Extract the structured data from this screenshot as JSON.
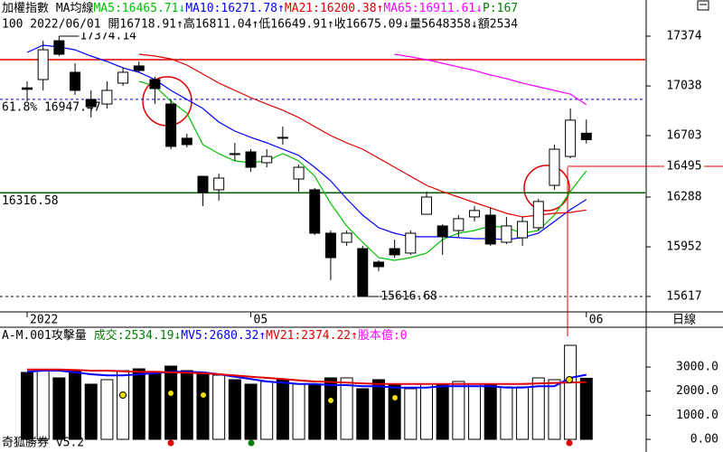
{
  "chart_data": [
    {
      "type": "candlestick",
      "title": "加權指數 MA均線",
      "info": "100 2022/06/01 開16718.91↑高16811.04↑低16649.91↑收16675.09↓量5648358↓額2534",
      "extra": {
        "text": "P:167",
        "color": "#008000"
      },
      "period": "日線",
      "categories": [
        "2022",
        null,
        null,
        null,
        null,
        null,
        null,
        null,
        null,
        null,
        null,
        null,
        null,
        null,
        "05",
        null,
        null,
        null,
        null,
        null,
        null,
        null,
        null,
        null,
        null,
        null,
        null,
        null,
        null,
        null,
        null,
        null,
        null,
        null,
        null,
        "06"
      ],
      "open": [
        17025,
        17081,
        17343,
        17130,
        16947,
        16916,
        17057,
        17173,
        17081,
        16916,
        16685,
        16428,
        16337,
        16581,
        16593,
        16520,
        16691,
        16410,
        16337,
        16044,
        15983,
        15940,
        15849,
        15940,
        15910,
        16172,
        16093,
        16062,
        16154,
        16166,
        15983,
        16013,
        16081,
        16367,
        16562,
        16718.91
      ],
      "high": [
        17069,
        17343,
        17374.14,
        17191,
        17008,
        17069,
        17160,
        17203,
        17099,
        16947,
        16715,
        16428,
        16446,
        16654,
        16611,
        16611,
        16764,
        16507,
        16349,
        16062,
        16062,
        15959,
        15861,
        16001,
        16062,
        16325,
        16105,
        16166,
        16227,
        16215,
        16154,
        16154,
        16276,
        16642,
        16886,
        16811.04
      ],
      "low": [
        16935,
        17008,
        17240,
        16977,
        16825,
        16886,
        17038,
        17130,
        16916,
        16611,
        16624,
        16227,
        16264,
        16532,
        16459,
        16489,
        16642,
        16324,
        16032,
        15727,
        15959,
        15616.68,
        15788,
        15879,
        15898,
        16172,
        15898,
        16020,
        16123,
        15959,
        15971,
        15959,
        16062,
        16337,
        16550,
        16649.91
      ],
      "close": [
        17015,
        17282,
        17252,
        17008,
        16898,
        17008,
        17130,
        17142,
        17020,
        16630,
        16642,
        16318,
        16416,
        16575,
        16489,
        16562,
        16685,
        16489,
        16044,
        15879,
        16044,
        15617,
        15818,
        15898,
        16044,
        16288,
        16020,
        16142,
        16197,
        15971,
        16093,
        16123,
        16258,
        16611,
        16807,
        16675.09
      ],
      "up_color": "#ffffff",
      "down_color": "#000000",
      "series": [
        {
          "name": "MA5:16465.71↓",
          "color": "#00c000",
          "values": [
            null,
            null,
            null,
            null,
            null,
            null,
            null,
            17069,
            17038,
            16935,
            16855,
            16642,
            16581,
            16532,
            16520,
            16532,
            16581,
            16532,
            16428,
            16245,
            16093,
            15983,
            15879,
            15861,
            15879,
            15910,
            16001,
            16044,
            16062,
            16093,
            16081,
            16044,
            16062,
            16166,
            16325,
            16465.71
          ]
        },
        {
          "name": "MA10:16271.78↑",
          "color": "#0000ff",
          "values": [
            17264,
            17313,
            17301,
            17282,
            17240,
            17203,
            17160,
            17130,
            17081,
            17008,
            16947,
            16886,
            16794,
            16733,
            16691,
            16654,
            16611,
            16569,
            16489,
            16398,
            16276,
            16166,
            16081,
            16044,
            16020,
            16020,
            16020,
            16014,
            16007,
            16007,
            16001,
            16014,
            16044,
            16123,
            16203,
            16271.78
          ]
        },
        {
          "name": "MA21:16200.38↑",
          "color": "#e00000",
          "values": [
            null,
            null,
            null,
            null,
            null,
            null,
            null,
            17252,
            17240,
            17221,
            17179,
            17118,
            17057,
            17008,
            16959,
            16916,
            16874,
            16825,
            16764,
            16703,
            16654,
            16611,
            16550,
            16489,
            16428,
            16367,
            16325,
            16288,
            16251,
            16215,
            16178,
            16154,
            16166,
            16178,
            16184,
            16200.38
          ]
        },
        {
          "name": "MA65:16911.61↓",
          "color": "#ff00ff",
          "values": [
            null,
            null,
            null,
            null,
            null,
            null,
            null,
            null,
            null,
            null,
            null,
            null,
            null,
            null,
            null,
            null,
            null,
            null,
            null,
            null,
            null,
            null,
            null,
            17252,
            17234,
            17215,
            17191,
            17166,
            17142,
            17112,
            17087,
            17057,
            17032,
            17008,
            16983,
            16911.61
          ]
        }
      ],
      "ylim": [
        15513,
        17618
      ],
      "yticks": [
        17374,
        17038,
        16703,
        16288,
        15952,
        15617
      ],
      "levels": [
        {
          "value": 17215,
          "color": "#e00000",
          "dashed": false
        },
        {
          "value": 16947.47,
          "label": "61.8% 16947.47",
          "color": "#0000c0",
          "dashed": true
        },
        {
          "value": 16316.58,
          "color": "#006000",
          "dashed": false
        },
        {
          "value": 15616.68,
          "color": "#000000",
          "dashed": true
        }
      ],
      "crosshair": 16495
    },
    {
      "type": "bar",
      "title": "A-M.001攻擊量",
      "name": "成交:2534.19↓",
      "legend_color": "#008000",
      "values": [
        2775,
        2850,
        2550,
        2850,
        2288,
        2475,
        2850,
        2925,
        2775,
        3038,
        2850,
        2775,
        2663,
        2475,
        2288,
        2400,
        2475,
        2288,
        2288,
        2550,
        2550,
        2100,
        2475,
        2288,
        2100,
        2288,
        2288,
        2400,
        2288,
        2288,
        2175,
        2175,
        2550,
        2475,
        3900,
        2534.19
      ],
      "series": [
        {
          "name": "MV5:2680.32↑",
          "color": "#0000ff",
          "values": [
            2800,
            2850,
            2850,
            2780,
            2700,
            2650,
            2650,
            2700,
            2750,
            2800,
            2800,
            2780,
            2700,
            2600,
            2500,
            2400,
            2350,
            2300,
            2300,
            2250,
            2250,
            2200,
            2200,
            2150,
            2150,
            2150,
            2200,
            2200,
            2200,
            2200,
            2150,
            2150,
            2200,
            2200,
            2550,
            2680.32
          ]
        },
        {
          "name": "MV21:2374.22↑",
          "color": "#e00000",
          "values": [
            2900,
            2900,
            2900,
            2880,
            2850,
            2850,
            2820,
            2800,
            2800,
            2780,
            2760,
            2740,
            2700,
            2650,
            2600,
            2550,
            2500,
            2450,
            2400,
            2380,
            2350,
            2320,
            2300,
            2300,
            2300,
            2300,
            2300,
            2300,
            2300,
            2300,
            2300,
            2300,
            2320,
            2340,
            2360,
            2374.22
          ]
        }
      ],
      "note": {
        "text": "股本億:0",
        "color": "#ff00ff"
      },
      "ylim": [
        -338,
        4650
      ],
      "yticks": [
        {
          "value": 3000,
          "label": "3000.0"
        },
        {
          "value": 2000,
          "label": "2000.0"
        },
        {
          "value": 1000,
          "label": "1000.0"
        },
        {
          "value": 0,
          "label": "0.00"
        }
      ]
    }
  ],
  "footer": "奇狐勝券 v5.2"
}
